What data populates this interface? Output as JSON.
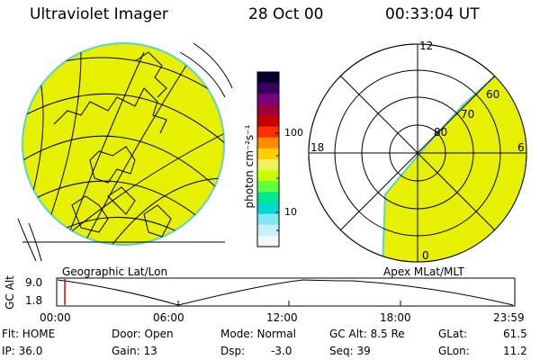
{
  "header": {
    "title": "Ultraviolet Imager",
    "date": "28 Oct 00",
    "time": "00:33:04 UT"
  },
  "left_panel": {
    "caption": "Geographic Lat/Lon"
  },
  "right_panel": {
    "caption": "Apex MLat/MLT",
    "mlt_labels": {
      "top": "12",
      "left": "18",
      "right": "6",
      "bottom": "0"
    },
    "lat_labels": [
      "60",
      "70",
      "80"
    ]
  },
  "colorbar": {
    "label": "photon cm⁻²s⁻¹",
    "ticks": [
      "100",
      "10"
    ],
    "colors": [
      "#000030",
      "#3a0060",
      "#7a0080",
      "#a00040",
      "#c80000",
      "#ff3000",
      "#ff8c00",
      "#ffd000",
      "#f0f060",
      "#c8ff00",
      "#60ff40",
      "#00e890",
      "#00d8d8",
      "#80e8f0",
      "#c8f0f8",
      "#f0f8fc"
    ]
  },
  "timeline": {
    "axis_label": "GC Alt",
    "y_ticks": [
      "9.0",
      "1.8"
    ],
    "x_ticks": [
      "00:00",
      "06:00",
      "12:00",
      "18:00",
      "23:59"
    ]
  },
  "footer": {
    "row1": {
      "flt": "Flt: HOME",
      "door": "Door: Open",
      "mode": "Mode: Normal",
      "gcalt": "GC Alt: 8.5 Re",
      "glat": "GLat:",
      "glat_val": "61.5"
    },
    "row2": {
      "ip": "IP: 36.0",
      "gain": "Gain: 13",
      "dsp": "Dsp:",
      "dsp_val": "-3.0",
      "seq": "Seq: 39",
      "glon": "GLon:",
      "glon_val": "11.2"
    }
  },
  "colors": {
    "aurora_fill": "#e6f000",
    "limb": "#5fd2c8"
  }
}
